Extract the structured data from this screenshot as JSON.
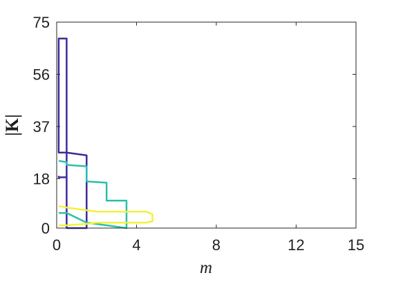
{
  "chart_data": {
    "type": "line",
    "title": "",
    "xlabel": "m",
    "ylabel": "|K|",
    "xlim": [
      0,
      15
    ],
    "ylim": [
      0,
      75
    ],
    "grid": false,
    "legend": "none",
    "x_ticks": [
      0,
      4,
      8,
      12,
      15
    ],
    "y_ticks": [
      0,
      18,
      37,
      56,
      75
    ],
    "series": [
      {
        "color": "#3b2a9c",
        "x": [
          0.5,
          0.5,
          0.1,
          0.1,
          0.5,
          0.5,
          1.5,
          1.5,
          0.5,
          0.5,
          0.1,
          0.1
        ],
        "y": [
          0,
          27.5,
          27.5,
          69.0,
          69.0,
          27.5,
          26.5,
          0,
          0,
          18.5,
          18.5,
          19.0
        ]
      },
      {
        "color": "#2bbfa8",
        "x": [
          0.1,
          0.5,
          0.5,
          1.5,
          1.5,
          2.5,
          2.5,
          3.5,
          3.5,
          3.5,
          2.5,
          1.5,
          0.5,
          0.1
        ],
        "y": [
          24.5,
          24.0,
          23.0,
          22.5,
          17.0,
          16.5,
          10.0,
          10.0,
          0,
          0,
          1.0,
          2.0,
          5.5,
          5.5
        ]
      },
      {
        "color": "#f2f23a",
        "x": [
          0.1,
          0.5,
          1.5,
          2.0,
          4.5,
          4.8,
          4.8,
          4.5,
          2.0,
          1.5,
          0.5,
          0.1
        ],
        "y": [
          8.0,
          7.5,
          6.5,
          6.0,
          6.0,
          5.0,
          2.5,
          2.0,
          2.0,
          1.5,
          1.0,
          1.0
        ]
      }
    ]
  }
}
